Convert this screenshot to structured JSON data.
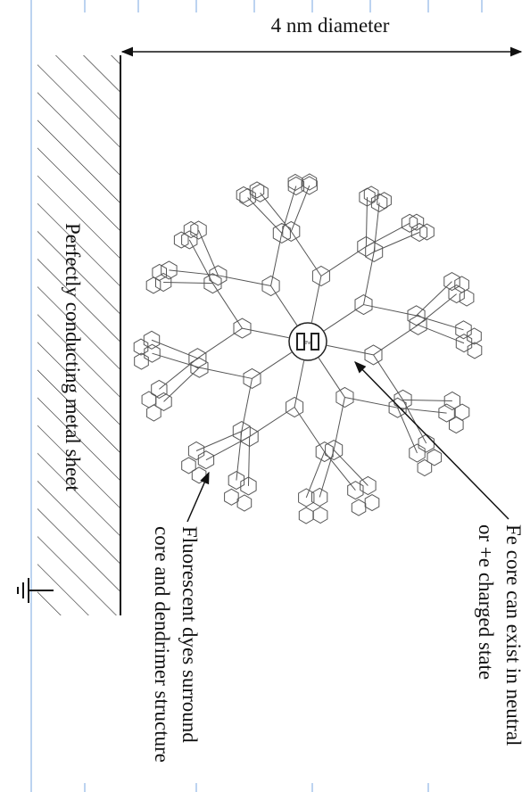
{
  "dimension_label": "4 nm diameter",
  "sheet_label": "Perfectly conducting metal sheet",
  "core_label": "Fe",
  "dye_annotation": {
    "line1": "Fluorescent dyes surround",
    "line2": "core and dendrimer structure"
  },
  "core_annotation": {
    "line1": "Fe core can exist in neutral",
    "line2": "or +e charged state"
  }
}
